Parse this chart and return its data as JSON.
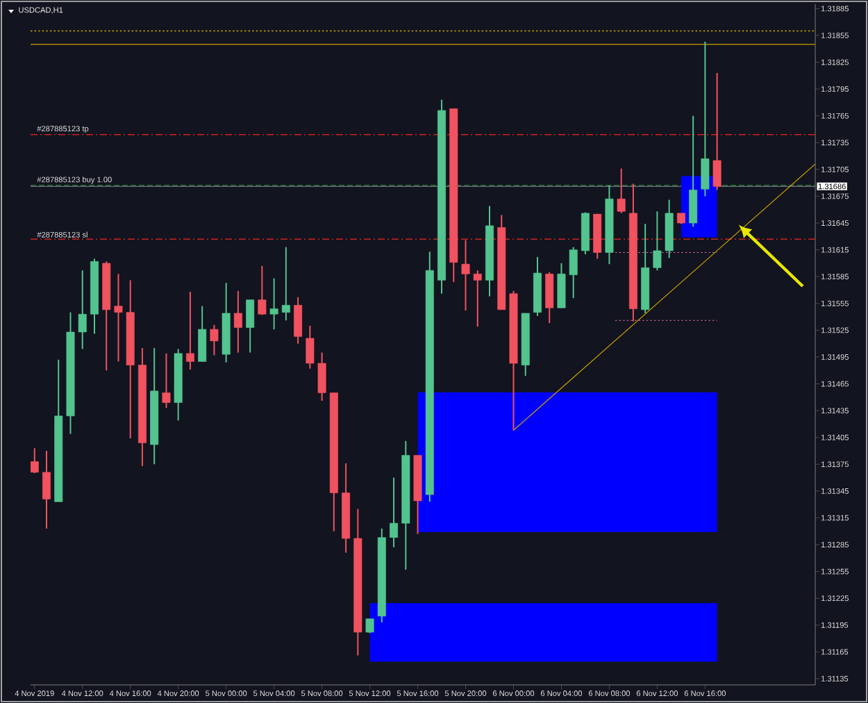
{
  "chart_data": {
    "type": "candlestick",
    "title": "USDCAD,H1",
    "x": [
      "2019-11-04T08:00",
      "2019-11-04T09:00",
      "2019-11-04T10:00",
      "2019-11-04T11:00",
      "2019-11-04T12:00",
      "2019-11-04T13:00",
      "2019-11-04T14:00",
      "2019-11-04T15:00",
      "2019-11-04T16:00",
      "2019-11-04T17:00",
      "2019-11-04T18:00",
      "2019-11-04T19:00",
      "2019-11-04T20:00",
      "2019-11-04T21:00",
      "2019-11-04T22:00",
      "2019-11-04T23:00",
      "2019-11-05T00:00",
      "2019-11-05T01:00",
      "2019-11-05T02:00",
      "2019-11-05T03:00",
      "2019-11-05T04:00",
      "2019-11-05T05:00",
      "2019-11-05T06:00",
      "2019-11-05T07:00",
      "2019-11-05T08:00",
      "2019-11-05T09:00",
      "2019-11-05T10:00",
      "2019-11-05T11:00",
      "2019-11-05T12:00",
      "2019-11-05T13:00",
      "2019-11-05T14:00",
      "2019-11-05T15:00",
      "2019-11-05T16:00",
      "2019-11-05T17:00",
      "2019-11-05T18:00",
      "2019-11-05T19:00",
      "2019-11-05T20:00",
      "2019-11-05T21:00",
      "2019-11-05T22:00",
      "2019-11-05T23:00",
      "2019-11-06T00:00",
      "2019-11-06T01:00",
      "2019-11-06T02:00",
      "2019-11-06T03:00",
      "2019-11-06T04:00",
      "2019-11-06T05:00",
      "2019-11-06T06:00",
      "2019-11-06T07:00",
      "2019-11-06T08:00",
      "2019-11-06T09:00",
      "2019-11-06T10:00",
      "2019-11-06T11:00",
      "2019-11-06T12:00",
      "2019-11-06T13:00",
      "2019-11-06T14:00",
      "2019-11-06T15:00",
      "2019-11-06T16:00",
      "2019-11-06T17:00"
    ],
    "ohlc": [
      [
        1.31378,
        1.31393,
        1.31365,
        1.31366
      ],
      [
        1.31366,
        1.3139,
        1.31303,
        1.31336
      ],
      [
        1.31333,
        1.31492,
        1.31333,
        1.31429
      ],
      [
        1.31429,
        1.31545,
        1.31409,
        1.31523
      ],
      [
        1.31523,
        1.31592,
        1.31504,
        1.31543
      ],
      [
        1.31543,
        1.31605,
        1.31521,
        1.31602
      ],
      [
        1.316,
        1.31602,
        1.3148,
        1.31548
      ],
      [
        1.31552,
        1.31588,
        1.3149,
        1.31545
      ],
      [
        1.31545,
        1.31581,
        1.31404,
        1.31486
      ],
      [
        1.31486,
        1.31505,
        1.31373,
        1.31399
      ],
      [
        1.31397,
        1.31505,
        1.31375,
        1.31457
      ],
      [
        1.31455,
        1.31499,
        1.31438,
        1.31444
      ],
      [
        1.31444,
        1.31504,
        1.31424,
        1.31499
      ],
      [
        1.31499,
        1.31568,
        1.31481,
        1.3149
      ],
      [
        1.3149,
        1.31552,
        1.3149,
        1.31526
      ],
      [
        1.31526,
        1.31531,
        1.31497,
        1.31513
      ],
      [
        1.31498,
        1.31578,
        1.31489,
        1.31544
      ],
      [
        1.31544,
        1.31569,
        1.315,
        1.31528
      ],
      [
        1.31528,
        1.31559,
        1.315,
        1.31559
      ],
      [
        1.31559,
        1.31597,
        1.31542,
        1.31543
      ],
      [
        1.31543,
        1.31583,
        1.31526,
        1.31549
      ],
      [
        1.31545,
        1.31618,
        1.31536,
        1.31553
      ],
      [
        1.31553,
        1.31562,
        1.3151,
        1.31518
      ],
      [
        1.31516,
        1.3153,
        1.31482,
        1.31488
      ],
      [
        1.31488,
        1.315,
        1.31446,
        1.31455
      ],
      [
        1.31455,
        1.31455,
        1.313,
        1.31343
      ],
      [
        1.31343,
        1.31376,
        1.31276,
        1.31292
      ],
      [
        1.31292,
        1.31325,
        1.31161,
        1.31187
      ],
      [
        1.31187,
        1.31202,
        1.31186,
        1.31202
      ],
      [
        1.31205,
        1.31303,
        1.31198,
        1.31293
      ],
      [
        1.31293,
        1.3136,
        1.31282,
        1.31309
      ],
      [
        1.31309,
        1.31401,
        1.31257,
        1.31385
      ],
      [
        1.31385,
        1.31385,
        1.31297,
        1.31334
      ],
      [
        1.31341,
        1.31613,
        1.31333,
        1.31592
      ],
      [
        1.31581,
        1.31783,
        1.31566,
        1.31771
      ],
      [
        1.31773,
        1.31773,
        1.31579,
        1.31601
      ],
      [
        1.31599,
        1.31626,
        1.31547,
        1.31588
      ],
      [
        1.31588,
        1.31592,
        1.31529,
        1.31581
      ],
      [
        1.31581,
        1.31664,
        1.31563,
        1.31642
      ],
      [
        1.3164,
        1.31654,
        1.31548,
        1.31548
      ],
      [
        1.31566,
        1.31569,
        1.31413,
        1.31488
      ],
      [
        1.31486,
        1.31544,
        1.31474,
        1.31544
      ],
      [
        1.31545,
        1.31607,
        1.31541,
        1.31589
      ],
      [
        1.31588,
        1.3159,
        1.31533,
        1.3155
      ],
      [
        1.3155,
        1.316,
        1.3155,
        1.31588
      ],
      [
        1.31587,
        1.31618,
        1.31561,
        1.31615
      ],
      [
        1.31614,
        1.31657,
        1.3161,
        1.31656
      ],
      [
        1.31655,
        1.31655,
        1.31605,
        1.31612
      ],
      [
        1.31612,
        1.31687,
        1.31599,
        1.31672
      ],
      [
        1.31672,
        1.31706,
        1.31656,
        1.31658
      ],
      [
        1.31656,
        1.31689,
        1.31535,
        1.31549
      ],
      [
        1.31548,
        1.31644,
        1.31544,
        1.31595
      ],
      [
        1.31595,
        1.31658,
        1.31592,
        1.31614
      ],
      [
        1.31614,
        1.31671,
        1.31606,
        1.31656
      ],
      [
        1.31656,
        1.31656,
        1.31644,
        1.31645
      ],
      [
        1.31645,
        1.31765,
        1.31641,
        1.31682
      ],
      [
        1.31683,
        1.31848,
        1.31675,
        1.31717
      ],
      [
        1.31715,
        1.31813,
        1.31682,
        1.31686
      ]
    ],
    "colors": [
      "#f0525f",
      "#f0525f",
      "#53c48f",
      "#53c48f",
      "#53c48f",
      "#53c48f",
      "#f0525f",
      "#f0525f",
      "#f0525f",
      "#f0525f",
      "#53c48f",
      "#f0525f",
      "#53c48f",
      "#f0525f",
      "#53c48f",
      "#f0525f",
      "#53c48f",
      "#f0525f",
      "#53c48f",
      "#f0525f",
      "#53c48f",
      "#53c48f",
      "#f0525f",
      "#f0525f",
      "#f0525f",
      "#f0525f",
      "#f0525f",
      "#f0525f",
      "#53c48f",
      "#53c48f",
      "#53c48f",
      "#53c48f",
      "#f0525f",
      "#53c48f",
      "#53c48f",
      "#f0525f",
      "#f0525f",
      "#f0525f",
      "#53c48f",
      "#f0525f",
      "#f0525f",
      "#53c48f",
      "#53c48f",
      "#f0525f",
      "#53c48f",
      "#53c48f",
      "#53c48f",
      "#f0525f",
      "#53c48f",
      "#f0525f",
      "#f0525f",
      "#53c48f",
      "#53c48f",
      "#53c48f",
      "#f0525f",
      "#53c48f",
      "#53c48f",
      "#f0525f"
    ],
    "series": [
      {
        "type": "line",
        "color": "#0000ff",
        "x": [
          "2019-11-05T16:00",
          "2019-11-06T17:00"
        ],
        "values": [
          1.31455,
          1.31455
        ],
        "lower": [
          1.31299,
          1.31299
        ],
        "upper": [
          1.31455,
          1.31455
        ]
      },
      {
        "type": "line",
        "color": "#0000ff",
        "x": [
          "2019-11-05T12:00",
          "2019-11-06T17:00"
        ],
        "values": [
          1.31219,
          1.31219
        ],
        "lower": [
          1.31154,
          1.31154
        ],
        "upper": [
          1.31219,
          1.31219
        ]
      },
      {
        "type": "line",
        "color": "#0000ff",
        "x": [
          "2019-11-06T14:00",
          "2019-11-06T17:00"
        ],
        "values": [
          1.31697,
          1.31697
        ],
        "lower": [
          1.31629,
          1.31629
        ],
        "upper": [
          1.31697,
          1.31697
        ]
      },
      {
        "type": "line",
        "color": "#c8a000",
        "line_style": "solid",
        "x": [
          "2019-11-06T00:00",
          "2019-11-07T01:12"
        ],
        "values": [
          1.31413,
          1.31711
        ]
      },
      {
        "type": "line",
        "color": "#e070b0",
        "line_style": "dotted",
        "x": [
          "2019-11-06T08:30",
          "2019-11-06T17:00"
        ],
        "values": [
          1.31612,
          1.31612
        ]
      },
      {
        "type": "line",
        "color": "#e070b0",
        "line_style": "dotted",
        "x": [
          "2019-11-06T08:30",
          "2019-11-06T17:00"
        ],
        "values": [
          1.31536,
          1.31536
        ]
      }
    ],
    "ref_lines": [
      {
        "axis": "y",
        "value": 1.3186,
        "color": "#d4b000",
        "line_style": "dotted"
      },
      {
        "axis": "y",
        "value": 1.31845,
        "color": "#c8a000",
        "line_style": "solid"
      },
      {
        "axis": "y",
        "value": 1.31744,
        "color": "#cc2222",
        "line_style": "dashdot",
        "label": "#287885123 tp"
      },
      {
        "axis": "y",
        "value": 1.31687,
        "color": "#2e7d32",
        "line_style": "dashed",
        "label": "#287885123 buy 1.00"
      },
      {
        "axis": "y",
        "value": 1.31627,
        "color": "#cc2222",
        "line_style": "dashdot",
        "label": "#287885123 sl"
      },
      {
        "axis": "y",
        "value": 1.31686,
        "color": "#6b7280",
        "line_style": "solid",
        "label": "1.31686"
      }
    ],
    "xlim": [
      "2019-11-04T07:40",
      "2019-11-07T01:12"
    ],
    "xticks": [
      {
        "value": "2019-11-04T08:00",
        "label": "4 Nov 2019"
      },
      {
        "value": "2019-11-04T12:00",
        "label": "4 Nov 12:00"
      },
      {
        "value": "2019-11-04T16:00",
        "label": "4 Nov 16:00"
      },
      {
        "value": "2019-11-04T20:00",
        "label": "4 Nov 20:00"
      },
      {
        "value": "2019-11-05T00:00",
        "label": "5 Nov 00:00"
      },
      {
        "value": "2019-11-05T04:00",
        "label": "5 Nov 04:00"
      },
      {
        "value": "2019-11-05T08:00",
        "label": "5 Nov 08:00"
      },
      {
        "value": "2019-11-05T12:00",
        "label": "5 Nov 12:00"
      },
      {
        "value": "2019-11-05T16:00",
        "label": "5 Nov 16:00"
      },
      {
        "value": "2019-11-05T20:00",
        "label": "5 Nov 20:00"
      },
      {
        "value": "2019-11-06T00:00",
        "label": "6 Nov 00:00"
      },
      {
        "value": "2019-11-06T04:00",
        "label": "6 Nov 04:00"
      },
      {
        "value": "2019-11-06T08:00",
        "label": "6 Nov 08:00"
      },
      {
        "value": "2019-11-06T12:00",
        "label": "6 Nov 12:00"
      },
      {
        "value": "2019-11-06T16:00",
        "label": "6 Nov 16:00"
      }
    ],
    "ylim": [
      1.31128,
      1.3189
    ],
    "yticks": [
      1.31135,
      1.31165,
      1.31195,
      1.31225,
      1.31255,
      1.31285,
      1.31315,
      1.31345,
      1.31375,
      1.31405,
      1.31435,
      1.31465,
      1.31495,
      1.31525,
      1.31555,
      1.31585,
      1.31615,
      1.31645,
      1.31675,
      1.31705,
      1.31735,
      1.31765,
      1.31795,
      1.31825,
      1.31855,
      1.31885
    ]
  }
}
